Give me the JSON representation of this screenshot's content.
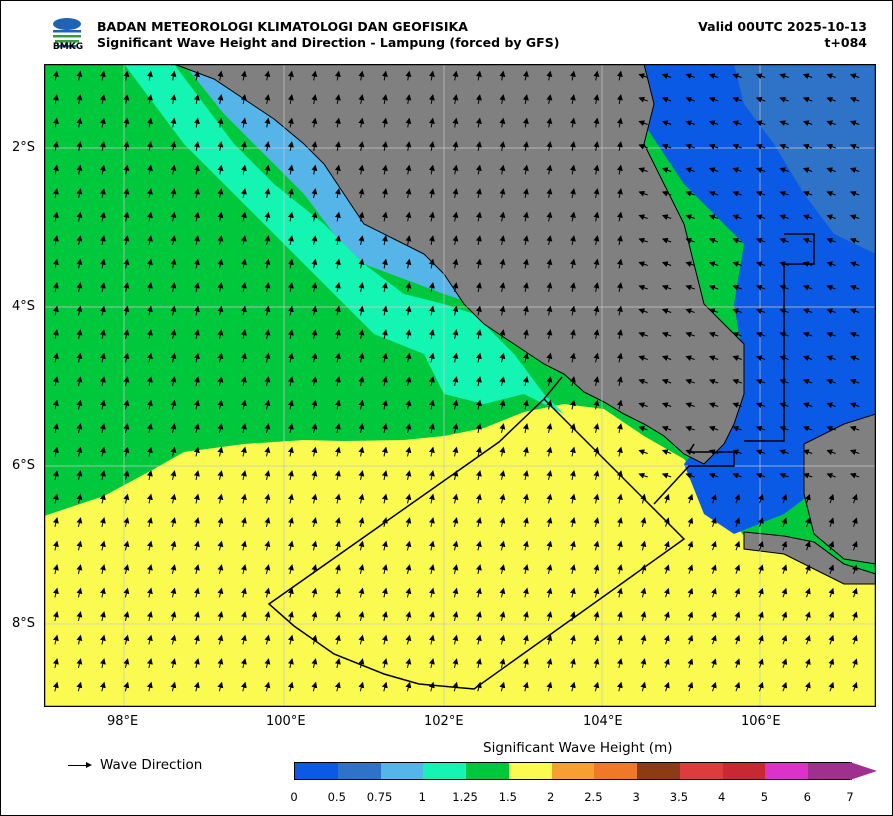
{
  "header": {
    "agency": "BADAN METEOROLOGI KLIMATOLOGI DAN GEOFISIKA",
    "subtitle": "Significant Wave Height and Direction - Lampung (forced by GFS)",
    "valid": "Valid 00UTC 2025-10-13",
    "lead": "t+084",
    "logo_text": "BMKG"
  },
  "map": {
    "lat_labels": [
      "2°S",
      "4°S",
      "6°S",
      "8°S"
    ],
    "lon_labels": [
      "98°E",
      "100°E",
      "102°E",
      "104°E",
      "106°E"
    ],
    "land_color": "#808080"
  },
  "legend": {
    "wave_direction_label": "Wave Direction"
  },
  "colorbar": {
    "title": "Significant Wave Height (m)",
    "ticks": [
      "0",
      "0.5",
      "0.75",
      "1",
      "1.25",
      "1.5",
      "2",
      "2.5",
      "3",
      "3.5",
      "4",
      "5",
      "6",
      "7"
    ],
    "colors": [
      "#0a5ae6",
      "#2e73c8",
      "#55b4e8",
      "#14f5b4",
      "#00c83c",
      "#fafa50",
      "#f5a030",
      "#f07828",
      "#8c3c14",
      "#dc3c3c",
      "#c82832",
      "#dc32c8",
      "#a03090"
    ]
  }
}
